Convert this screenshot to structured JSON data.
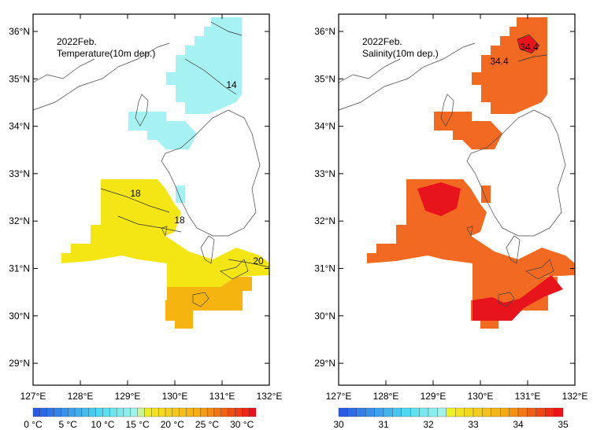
{
  "panels": [
    {
      "title": "2022Feb.",
      "subtitle": "Temperature(10m dep.)",
      "contour_labels": [
        "14",
        "18",
        "18",
        "20"
      ],
      "colorbar_labels": [
        "0 °C",
        "5 °C",
        "10 °C",
        "15 °C",
        "20 °C",
        "25 °C",
        "30 °C"
      ]
    },
    {
      "title": "2022Feb.",
      "subtitle": "Salinity(10m dep.)",
      "contour_labels": [
        "34.4",
        "34.4"
      ],
      "colorbar_labels": [
        "30",
        "31",
        "32",
        "33",
        "34",
        "35"
      ]
    }
  ],
  "x_labels": [
    "127°E",
    "128°E",
    "129°E",
    "130°E",
    "131°E",
    "132°E"
  ],
  "y_labels": [
    "36°N",
    "35°N",
    "34°N",
    "33°N",
    "32°N",
    "31°N",
    "30°N",
    "29°N"
  ]
}
